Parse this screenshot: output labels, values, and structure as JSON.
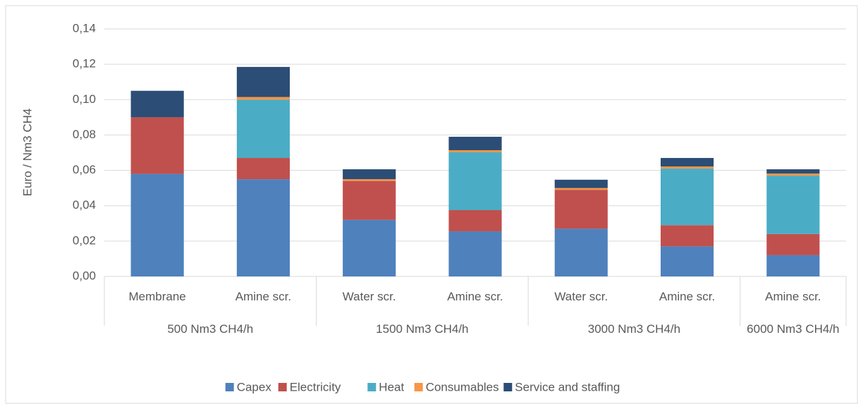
{
  "chart_data": {
    "type": "stacked_bar",
    "y_label": "Euro / Nm3 CH4",
    "groups": [
      {
        "name": "500 Nm3 CH4/h",
        "categories": [
          "Membrane",
          "Amine scr."
        ]
      },
      {
        "name": "1500 Nm3 CH4/h",
        "categories": [
          "Water scr.",
          "Amine scr."
        ]
      },
      {
        "name": "3000 Nm3 CH4/h",
        "categories": [
          "Water scr.",
          "Amine scr."
        ]
      },
      {
        "name": "6000 Nm3 CH4/h",
        "categories": [
          "Amine scr."
        ]
      }
    ],
    "series": [
      {
        "name": "Capex",
        "color": "#4f81bd",
        "values": [
          0.058,
          0.055,
          0.032,
          0.0255,
          0.027,
          0.017,
          0.012
        ]
      },
      {
        "name": "Electricity",
        "color": "#c0504d",
        "values": [
          0.032,
          0.012,
          0.022,
          0.012,
          0.022,
          0.012,
          0.012
        ]
      },
      {
        "name": "Heat",
        "color": "#4bacc6",
        "values": [
          0,
          0.033,
          0,
          0.0327,
          0,
          0.032,
          0.033
        ]
      },
      {
        "name": "Consumables",
        "color": "#f79646",
        "values": [
          0,
          0.0015,
          0.001,
          0.0012,
          0.001,
          0.0012,
          0.0012
        ]
      },
      {
        "name": "Service and staffing",
        "color": "#2c4d75",
        "values": [
          0.015,
          0.017,
          0.0056,
          0.0076,
          0.0047,
          0.0048,
          0.0024
        ]
      }
    ],
    "ylim": [
      0,
      0.14
    ],
    "yticks": [
      {
        "value": 0,
        "label": "0,00"
      },
      {
        "value": 0.02,
        "label": "0,02"
      },
      {
        "value": 0.04,
        "label": "0,04"
      },
      {
        "value": 0.06,
        "label": "0,06"
      },
      {
        "value": 0.08,
        "label": "0,08"
      },
      {
        "value": 0.1,
        "label": "0,10"
      },
      {
        "value": 0.12,
        "label": "0,12"
      },
      {
        "value": 0.14,
        "label": "0,14"
      }
    ],
    "grid": true,
    "legend": "bottom"
  }
}
